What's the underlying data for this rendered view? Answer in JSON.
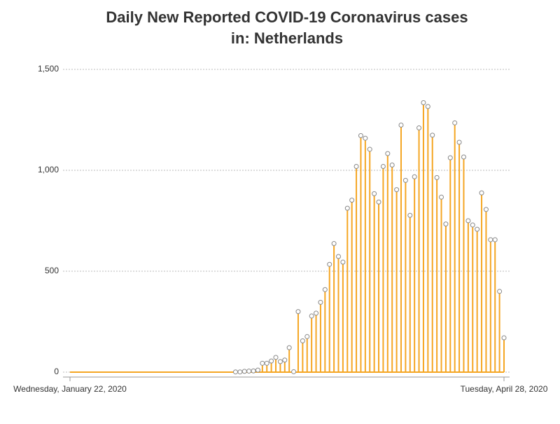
{
  "chart_data": {
    "type": "lollipop",
    "title": [
      "Daily New Reported COVID-19 Coronavirus cases",
      "in: Netherlands"
    ],
    "categories": [
      "Wednesday, January 22, 2020",
      null,
      null,
      null,
      null,
      null,
      null,
      null,
      null,
      null,
      null,
      null,
      null,
      null,
      null,
      null,
      null,
      null,
      null,
      null,
      null,
      null,
      null,
      null,
      null,
      null,
      null,
      null,
      null,
      null,
      null,
      null,
      null,
      null,
      null,
      null,
      null,
      null,
      null,
      null,
      null,
      null,
      null,
      null,
      null,
      null,
      null,
      null,
      null,
      null,
      null,
      null,
      null,
      null,
      null,
      null,
      null,
      null,
      null,
      null,
      null,
      null,
      null,
      null,
      null,
      null,
      null,
      null,
      null,
      null,
      null,
      null,
      null,
      null,
      null,
      null,
      null,
      null,
      null,
      null,
      null,
      null,
      null,
      null,
      null,
      null,
      null,
      null,
      null,
      null,
      null,
      null,
      null,
      null,
      null,
      null,
      null,
      "Tuesday, April 28, 2020"
    ],
    "values": [
      0,
      0,
      0,
      0,
      0,
      0,
      0,
      0,
      0,
      0,
      0,
      0,
      0,
      0,
      0,
      0,
      0,
      0,
      0,
      0,
      0,
      0,
      0,
      0,
      0,
      0,
      0,
      0,
      0,
      0,
      0,
      0,
      0,
      0,
      0,
      0,
      0,
      1,
      1,
      4,
      5,
      6,
      10,
      44,
      44,
      55,
      73,
      52,
      60,
      121,
      2,
      300,
      155,
      176,
      278,
      292,
      346,
      409,
      534,
      637,
      573,
      545,
      812,
      852,
      1019,
      1172,
      1159,
      1104,
      884,
      843,
      1019,
      1083,
      1026,
      904,
      1224,
      950,
      777,
      968,
      1210,
      1335,
      1316,
      1174,
      964,
      867,
      734,
      1062,
      1235,
      1139,
      1066,
      750,
      729,
      708,
      888,
      806,
      656,
      656,
      400,
      170
    ],
    "color": "#f5a623",
    "ylim": [
      0,
      1500
    ],
    "yticks": [
      0,
      500,
      {
        "value": 1000,
        "label": "1,000"
      },
      {
        "value": 1500,
        "label": "1,500"
      }
    ],
    "grid": true
  }
}
